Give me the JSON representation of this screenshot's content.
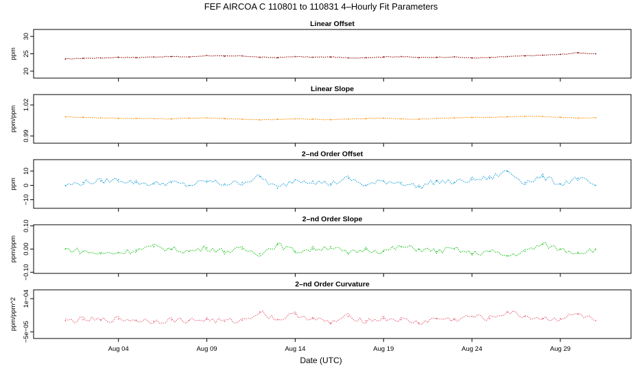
{
  "title": "FEF   AIRCOA C   110801 to 110831   4–Hourly Fit Parameters",
  "xlabel": "Date (UTC)",
  "chart_data": {
    "type": "scatter",
    "x_range": [
      "2011-08-01",
      "2011-08-31"
    ],
    "x_ticks": [
      "Aug 04",
      "Aug 09",
      "Aug 14",
      "Aug 19",
      "Aug 24",
      "Aug 29"
    ],
    "x_tick_days": [
      4,
      9,
      14,
      19,
      24,
      29
    ],
    "panels": [
      {
        "title": "Linear Offset",
        "ylabel": "ppm",
        "color": "#8b0000",
        "ylim": [
          18,
          32
        ],
        "yticks": [
          "20",
          "25",
          "30"
        ],
        "ytick_values": [
          20,
          25,
          30
        ],
        "series": [
          {
            "days": [
              1,
              2,
              3,
              4,
              5,
              6,
              7,
              8,
              9,
              10,
              11,
              12,
              13,
              14,
              15,
              16,
              17,
              18,
              19,
              20,
              21,
              22,
              23,
              24,
              25,
              26,
              27,
              28,
              29,
              30,
              31
            ],
            "values": [
              23.5,
              23.7,
              23.8,
              24.0,
              23.9,
              24.1,
              24.2,
              24.1,
              24.5,
              24.3,
              24.4,
              24.0,
              23.9,
              24.2,
              24.0,
              24.1,
              23.8,
              23.9,
              24.1,
              24.2,
              23.9,
              24.0,
              24.1,
              23.8,
              23.9,
              24.2,
              24.4,
              24.6,
              24.8,
              25.3,
              25.0
            ]
          }
        ]
      },
      {
        "title": "Linear Slope",
        "ylabel": "ppm/ppm",
        "color": "#ff8c00",
        "ylim": [
          0.983,
          1.03
        ],
        "yticks": [
          "0.99",
          "1.02"
        ],
        "ytick_values": [
          0.99,
          1.02
        ],
        "series": [
          {
            "days": [
              1,
              2,
              3,
              4,
              5,
              6,
              7,
              8,
              9,
              10,
              11,
              12,
              13,
              14,
              15,
              16,
              17,
              18,
              19,
              20,
              21,
              22,
              23,
              24,
              25,
              26,
              27,
              28,
              29,
              30,
              31
            ],
            "values": [
              1.0085,
              1.008,
              1.0075,
              1.007,
              1.007,
              1.0068,
              1.0065,
              1.0072,
              1.0075,
              1.0068,
              1.0062,
              1.0055,
              1.006,
              1.0065,
              1.0062,
              1.0058,
              1.0063,
              1.0068,
              1.0072,
              1.0065,
              1.0063,
              1.007,
              1.0075,
              1.0078,
              1.008,
              1.0085,
              1.009,
              1.0088,
              1.008,
              1.0072,
              1.0075
            ]
          }
        ]
      },
      {
        "title": "2–nd Order Offset",
        "ylabel": "ppm",
        "color": "#1e9fd8",
        "ylim": [
          -16,
          18
        ],
        "yticks": [
          "−10",
          "0",
          "10"
        ],
        "ytick_values": [
          -10,
          0,
          10
        ],
        "series": [
          {
            "days": [
              1,
              2,
              3,
              4,
              5,
              6,
              7,
              8,
              9,
              10,
              11,
              12,
              13,
              14,
              15,
              16,
              17,
              18,
              19,
              20,
              21,
              22,
              23,
              24,
              25,
              26,
              27,
              28,
              29,
              30,
              31
            ],
            "values": [
              0,
              2,
              3,
              4,
              2,
              1,
              2,
              0,
              3,
              1,
              2,
              6,
              -2,
              4,
              3,
              1,
              5,
              0,
              3,
              2,
              -1,
              3,
              2,
              4,
              5,
              10,
              2,
              6,
              1,
              5,
              0
            ]
          }
        ]
      },
      {
        "title": "2–nd Order Slope",
        "ylabel": "ppm/ppm",
        "color": "#1cc41c",
        "ylim": [
          -0.105,
          0.105
        ],
        "yticks": [
          "−0.10",
          "0.00",
          "0.10"
        ],
        "ytick_values": [
          -0.1,
          0.0,
          0.1
        ],
        "series": [
          {
            "days": [
              1,
              2,
              3,
              4,
              5,
              6,
              7,
              8,
              9,
              10,
              11,
              12,
              13,
              14,
              15,
              16,
              17,
              18,
              19,
              20,
              21,
              22,
              23,
              24,
              25,
              26,
              27,
              28,
              29,
              30,
              31
            ],
            "values": [
              0,
              -0.01,
              -0.02,
              -0.015,
              -0.005,
              0.01,
              0.0,
              -0.01,
              0.005,
              -0.01,
              0.0,
              -0.02,
              0.02,
              -0.01,
              0.0,
              0.01,
              -0.02,
              0.0,
              -0.01,
              0.01,
              0.0,
              -0.01,
              0.0,
              -0.02,
              -0.01,
              -0.03,
              -0.01,
              0.02,
              0.0,
              -0.015,
              0.0
            ]
          }
        ]
      },
      {
        "title": "2–nd Order Curvature",
        "ylabel": "ppm/ppm^2",
        "color": "#e8607a",
        "ylim": [
          -8e-05,
          0.00014
        ],
        "yticks": [
          "−5e−05",
          "1e−04"
        ],
        "ytick_values": [
          -5e-05,
          0.0001
        ],
        "series": [
          {
            "days": [
              1,
              2,
              3,
              4,
              5,
              6,
              7,
              8,
              9,
              10,
              11,
              12,
              13,
              14,
              15,
              16,
              17,
              18,
              19,
              20,
              21,
              22,
              23,
              24,
              25,
              26,
              27,
              28,
              29,
              30,
              31
            ],
            "values": [
              0,
              5e-06,
              2e-06,
              8e-06,
              3e-06,
              -2e-06,
              4e-06,
              1e-06,
              6e-06,
              -3e-06,
              2e-06,
              4e-05,
              5e-06,
              3e-05,
              1e-05,
              -1e-05,
              2e-05,
              0,
              1e-05,
              5e-06,
              -1e-05,
              1e-05,
              5e-06,
              2e-05,
              1e-05,
              4e-05,
              2e-05,
              1e-05,
              1e-05,
              3e-05,
              0
            ]
          }
        ]
      }
    ]
  }
}
